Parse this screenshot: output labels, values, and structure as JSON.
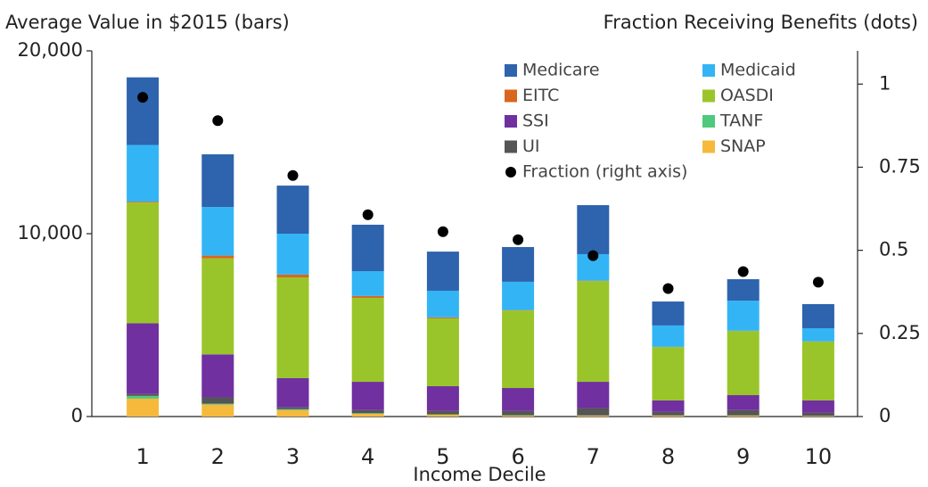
{
  "chart_data": {
    "type": "bar",
    "stacked": true,
    "title": "Average Value in $2015 (bars)",
    "y2_title": "Fraction Receiving Benefits (dots)",
    "x_label": "Income Decile",
    "categories": [
      "1",
      "2",
      "3",
      "4",
      "5",
      "6",
      "7",
      "8",
      "9",
      "10"
    ],
    "ylim": [
      0,
      20000
    ],
    "yticks": [
      0,
      {
        "value": 10000,
        "label": "10,000"
      },
      {
        "value": 20000,
        "label": "20,000"
      }
    ],
    "y2lim": [
      0,
      1.1
    ],
    "y2ticks": [
      0,
      0.25,
      0.5,
      0.75,
      1
    ],
    "grid": false,
    "legend": "upper right",
    "series": [
      {
        "name": "SNAP",
        "color": "#f5b93b",
        "values": [
          980,
          650,
          350,
          150,
          100,
          50,
          50,
          50,
          50,
          30
        ]
      },
      {
        "name": "TANF",
        "color": "#4fc97c",
        "values": [
          150,
          50,
          50,
          30,
          20,
          20,
          10,
          10,
          10,
          10
        ]
      },
      {
        "name": "UI",
        "color": "#555555",
        "values": [
          100,
          350,
          100,
          170,
          180,
          230,
          400,
          190,
          290,
          160
        ]
      },
      {
        "name": "SSI",
        "color": "#7030a0",
        "values": [
          3870,
          2350,
          1600,
          1550,
          1360,
          1260,
          1440,
          630,
          820,
          680
        ]
      },
      {
        "name": "OASDI",
        "color": "#9ac52a",
        "values": [
          6600,
          5250,
          5510,
          4590,
          3710,
          4240,
          5510,
          2920,
          3510,
          3220
        ]
      },
      {
        "name": "EITC",
        "color": "#d9661f",
        "values": [
          50,
          150,
          150,
          100,
          50,
          20,
          20,
          10,
          10,
          10
        ]
      },
      {
        "name": "Medicaid",
        "color": "#33b5f5",
        "values": [
          3100,
          2660,
          2240,
          1360,
          1460,
          1550,
          1450,
          1170,
          1650,
          720
        ]
      },
      {
        "name": "Medicare",
        "color": "#2e63ad",
        "values": [
          3700,
          2880,
          2630,
          2540,
          2140,
          1900,
          2680,
          1310,
          1170,
          1320
        ]
      },
      {
        "name": "Fraction (right axis)",
        "color": "#000000",
        "axis": "y2",
        "values": [
          0.96,
          0.89,
          0.725,
          0.607,
          0.556,
          0.532,
          0.484,
          0.385,
          0.436,
          0.404
        ]
      }
    ],
    "legend_order": [
      7,
      6,
      5,
      4,
      3,
      1,
      2,
      0,
      8
    ]
  }
}
